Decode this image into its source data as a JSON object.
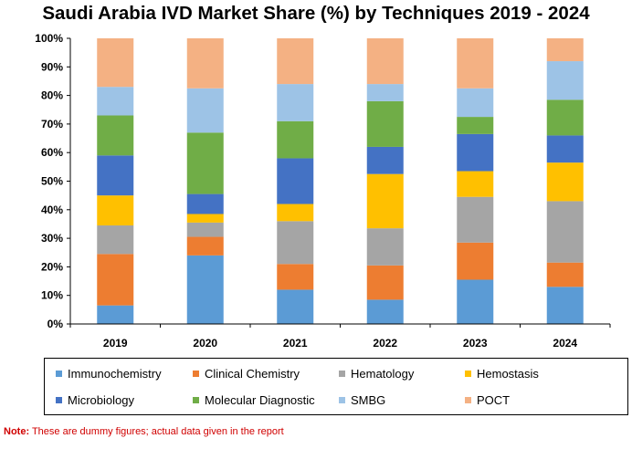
{
  "chart_data": {
    "type": "bar",
    "stacked": true,
    "title": "Saudi Arabia IVD Market Share (%) by Techniques 2019 - 2024",
    "categories": [
      "2019",
      "2020",
      "2021",
      "2022",
      "2023",
      "2024"
    ],
    "ylim": [
      0,
      100
    ],
    "yticks": [
      "0%",
      "10%",
      "20%",
      "30%",
      "40%",
      "50%",
      "60%",
      "70%",
      "80%",
      "90%",
      "100%"
    ],
    "grid": false,
    "legend_position": "bottom",
    "series": [
      {
        "name": "Immunochemistry",
        "color": "#5b9bd5",
        "values": [
          6.5,
          24.0,
          12.0,
          8.5,
          15.5,
          13.0
        ]
      },
      {
        "name": "Clinical Chemistry",
        "color": "#ed7d31",
        "values": [
          18.0,
          6.5,
          9.0,
          12.0,
          13.0,
          8.5
        ]
      },
      {
        "name": "Hematology",
        "color": "#a5a5a5",
        "values": [
          10.0,
          5.0,
          15.0,
          13.0,
          16.0,
          21.5
        ]
      },
      {
        "name": "Hemostasis",
        "color": "#ffc000",
        "values": [
          10.5,
          3.0,
          6.0,
          19.0,
          9.0,
          13.5
        ]
      },
      {
        "name": "Microbiology",
        "color": "#4472c4",
        "values": [
          14.0,
          7.0,
          16.0,
          9.5,
          13.0,
          9.5
        ]
      },
      {
        "name": "Molecular Diagnostic",
        "color": "#70ad47",
        "values": [
          14.0,
          21.5,
          13.0,
          16.0,
          6.0,
          12.5
        ]
      },
      {
        "name": "SMBG",
        "color": "#9dc3e6",
        "values": [
          10.0,
          15.5,
          13.0,
          6.0,
          10.0,
          13.5
        ]
      },
      {
        "name": "POCT",
        "color": "#f4b183",
        "values": [
          17.0,
          17.5,
          16.0,
          16.0,
          17.5,
          8.0
        ]
      }
    ]
  },
  "footnote": {
    "label": "Note:",
    "text": " These are dummy figures; actual data given in the report"
  }
}
